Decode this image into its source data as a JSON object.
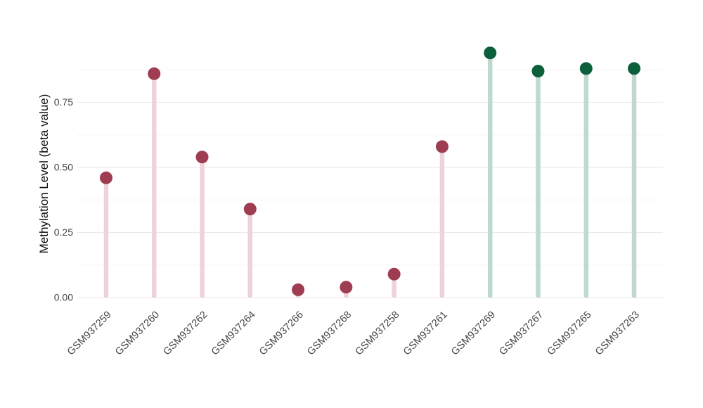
{
  "chart_data": {
    "type": "lollipop",
    "title": "",
    "xlabel": "",
    "ylabel": "Methylation Level (beta value)",
    "categories": [
      "GSM937259",
      "GSM937260",
      "GSM937262",
      "GSM937264",
      "GSM937266",
      "GSM937268",
      "GSM937258",
      "GSM937261",
      "GSM937269",
      "GSM937267",
      "GSM937265",
      "GSM937263"
    ],
    "values": [
      0.46,
      0.86,
      0.54,
      0.34,
      0.03,
      0.04,
      0.09,
      0.58,
      0.94,
      0.87,
      0.88,
      0.88
    ],
    "group_of_point": [
      "maroon",
      "maroon",
      "maroon",
      "maroon",
      "maroon",
      "maroon",
      "maroon",
      "maroon",
      "green",
      "green",
      "green",
      "green"
    ],
    "group_styles": {
      "maroon": {
        "dot": "#9e3d51",
        "stem": "#edd3db"
      },
      "green": {
        "dot": "#0c5f3b",
        "stem": "#c0d9cd"
      }
    },
    "yticks": [
      {
        "value": 0.0,
        "label": "0.00"
      },
      {
        "value": 0.25,
        "label": "0.25"
      },
      {
        "value": 0.5,
        "label": "0.50"
      },
      {
        "value": 0.75,
        "label": "0.75"
      }
    ],
    "ylim": [
      0,
      1
    ],
    "grid": {
      "major_values": [
        0.0,
        0.25,
        0.5,
        0.75
      ],
      "minor_values": [
        0.125,
        0.375,
        0.625,
        0.875
      ]
    },
    "x_tick_rotation": -45,
    "legend_position": "none",
    "colors": {
      "background": "#ffffff",
      "grid_major": "#ebebeb",
      "grid_minor": "#f5f5f5",
      "tick_label": "#454545",
      "axis_title": "#0a0a0a"
    }
  }
}
